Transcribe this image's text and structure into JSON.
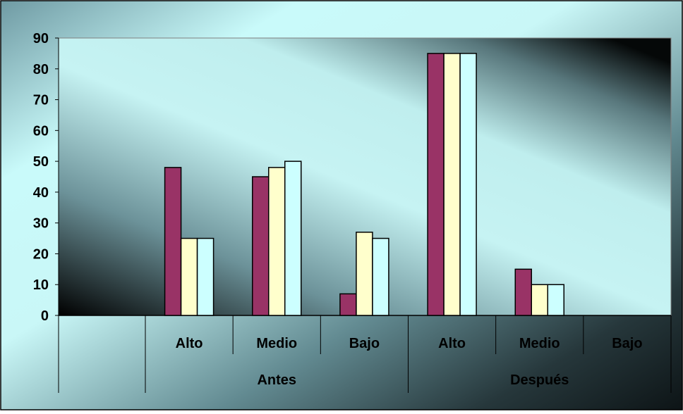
{
  "chart_data": {
    "type": "bar",
    "title": "",
    "xlabel": "",
    "ylabel": "",
    "ylim": [
      0,
      90
    ],
    "yticks": [
      0,
      10,
      20,
      30,
      40,
      50,
      60,
      70,
      80,
      90
    ],
    "grid": false,
    "legend": "none",
    "groups": [
      {
        "label": "Antes",
        "categories": [
          "Alto",
          "Medio",
          "Bajo"
        ]
      },
      {
        "label": "Después",
        "categories": [
          "Alto",
          "Medio",
          "Bajo"
        ]
      }
    ],
    "categories": [
      "Alto",
      "Medio",
      "Bajo",
      "Alto",
      "Medio",
      "Bajo"
    ],
    "series": [
      {
        "color": "#993366",
        "values": [
          48,
          45,
          7,
          85,
          15,
          0
        ]
      },
      {
        "color": "#FFFFCC",
        "values": [
          25,
          48,
          27,
          85,
          10,
          0
        ]
      },
      {
        "color": "#CCFFFF",
        "values": [
          25,
          50,
          25,
          85,
          10,
          0
        ]
      }
    ]
  }
}
